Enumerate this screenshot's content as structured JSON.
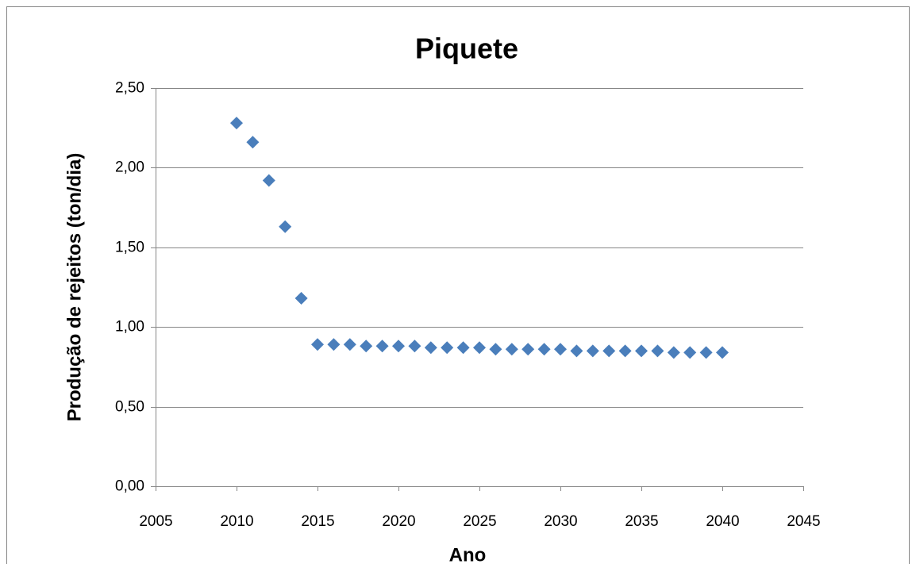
{
  "chart_data": {
    "type": "scatter",
    "title": "Piquete",
    "xlabel": "Ano",
    "ylabel": "Produção de rejeitos (ton/dia)",
    "series": [
      {
        "name": "Piquete",
        "color": "#4a7ebb",
        "x": [
          2010,
          2011,
          2012,
          2013,
          2014,
          2015,
          2016,
          2017,
          2018,
          2019,
          2020,
          2021,
          2022,
          2023,
          2024,
          2025,
          2026,
          2027,
          2028,
          2029,
          2030,
          2031,
          2032,
          2033,
          2034,
          2035,
          2036,
          2037,
          2038,
          2039,
          2040
        ],
        "values": [
          2.28,
          2.16,
          1.92,
          1.63,
          1.18,
          0.89,
          0.89,
          0.89,
          0.88,
          0.88,
          0.88,
          0.88,
          0.87,
          0.87,
          0.87,
          0.87,
          0.86,
          0.86,
          0.86,
          0.86,
          0.86,
          0.85,
          0.85,
          0.85,
          0.85,
          0.85,
          0.85,
          0.84,
          0.84,
          0.84,
          0.84
        ]
      }
    ],
    "xlim": [
      2005,
      2045
    ],
    "xticks": [
      2005,
      2010,
      2015,
      2020,
      2025,
      2030,
      2035,
      2040,
      2045
    ],
    "ylim": [
      0,
      2.5
    ],
    "yticks": [
      {
        "value": 0,
        "label": "0,00"
      },
      {
        "value": 0.5,
        "label": "0,50"
      },
      {
        "value": 1,
        "label": "1,00"
      },
      {
        "value": 1.5,
        "label": "1,50"
      },
      {
        "value": 2,
        "label": "2,00"
      },
      {
        "value": 2.5,
        "label": "2,50"
      }
    ],
    "grid": true
  }
}
